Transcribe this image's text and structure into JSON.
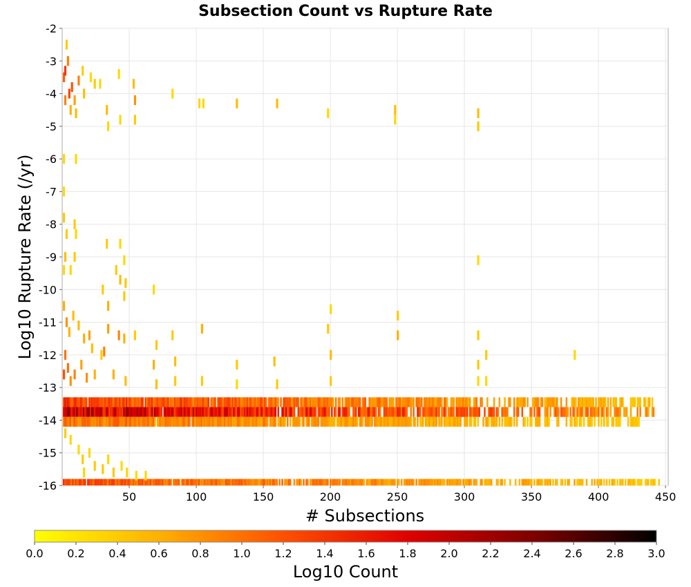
{
  "chart_data": {
    "type": "heatmap",
    "title": "Subsection Count vs Rupture Rate",
    "xlabel": "# Subsections",
    "ylabel": "Log10 Rupture Rate (/yr)",
    "xlim": [
      0,
      452
    ],
    "ylim": [
      -16,
      -2
    ],
    "xticks": [
      "50",
      "100",
      "150",
      "200",
      "250",
      "300",
      "350",
      "400",
      "450"
    ],
    "yticks": [
      "-2",
      "-3",
      "-4",
      "-5",
      "-6",
      "-7",
      "-8",
      "-9",
      "-10",
      "-11",
      "-12",
      "-13",
      "-14",
      "-15",
      "-16"
    ],
    "grid": true,
    "colorbar": {
      "label": "Log10 Count",
      "range": [
        0.0,
        3.0
      ],
      "ticks": [
        "0.0",
        "0.2",
        "0.4",
        "0.6",
        "0.8",
        "1.0",
        "1.2",
        "1.4",
        "1.6",
        "1.8",
        "2.0",
        "2.2",
        "2.4",
        "2.6",
        "2.8",
        "3.0"
      ],
      "colors": [
        "#ffff00",
        "#ffb000",
        "#ff5000",
        "#e00000",
        "#800000",
        "#000000"
      ]
    },
    "bands": [
      {
        "y": [
          -13.3,
          -13.6
        ],
        "x_end": 440,
        "peak": 1.6
      },
      {
        "y": [
          -13.6,
          -13.9
        ],
        "x_end": 445,
        "peak": 2.4
      },
      {
        "y": [
          -13.9,
          -14.2
        ],
        "x_end": 430,
        "peak": 1.2
      },
      {
        "y": [
          -15.8,
          -16.0
        ],
        "x_end": 445,
        "peak": 1.4
      }
    ],
    "bins": [
      {
        "x": 1,
        "y": -3.5,
        "v": 1.1
      },
      {
        "x": 2,
        "y": -3.3,
        "v": 1.4
      },
      {
        "x": 2,
        "y": -4.2,
        "v": 0.9
      },
      {
        "x": 3,
        "y": -2.5,
        "v": 0.4
      },
      {
        "x": 4,
        "y": -3.0,
        "v": 0.9
      },
      {
        "x": 5,
        "y": -4.0,
        "v": 1.3
      },
      {
        "x": 6,
        "y": -4.5,
        "v": 0.6
      },
      {
        "x": 7,
        "y": -3.8,
        "v": 1.2
      },
      {
        "x": 9,
        "y": -4.2,
        "v": 0.7
      },
      {
        "x": 10,
        "y": -4.6,
        "v": 0.5
      },
      {
        "x": 12,
        "y": -3.6,
        "v": 0.9
      },
      {
        "x": 15,
        "y": -3.3,
        "v": 0.4
      },
      {
        "x": 16,
        "y": -4.0,
        "v": 0.5
      },
      {
        "x": 21,
        "y": -3.5,
        "v": 0.3
      },
      {
        "x": 24,
        "y": -3.7,
        "v": 0.4
      },
      {
        "x": 28,
        "y": -3.7,
        "v": 0.3
      },
      {
        "x": 33,
        "y": -4.5,
        "v": 0.5
      },
      {
        "x": 34,
        "y": -5.0,
        "v": 0.3
      },
      {
        "x": 42,
        "y": -3.4,
        "v": 0.3
      },
      {
        "x": 43,
        "y": -4.8,
        "v": 0.3
      },
      {
        "x": 53,
        "y": -3.7,
        "v": 0.5
      },
      {
        "x": 54,
        "y": -4.2,
        "v": 0.8
      },
      {
        "x": 54,
        "y": -4.8,
        "v": 0.4
      },
      {
        "x": 82,
        "y": -4.0,
        "v": 0.3
      },
      {
        "x": 102,
        "y": -4.3,
        "v": 0.3
      },
      {
        "x": 105,
        "y": -4.3,
        "v": 0.3
      },
      {
        "x": 130,
        "y": -4.3,
        "v": 0.5
      },
      {
        "x": 160,
        "y": -4.3,
        "v": 0.5
      },
      {
        "x": 198,
        "y": -4.6,
        "v": 0.3
      },
      {
        "x": 248,
        "y": -4.5,
        "v": 0.5
      },
      {
        "x": 248,
        "y": -4.8,
        "v": 0.3
      },
      {
        "x": 310,
        "y": -4.6,
        "v": 0.5
      },
      {
        "x": 310,
        "y": -5.0,
        "v": 0.4
      },
      {
        "x": 1,
        "y": -6.0,
        "v": 0.3
      },
      {
        "x": 10,
        "y": -6.0,
        "v": 0.3
      },
      {
        "x": 1,
        "y": -7.0,
        "v": 0.3
      },
      {
        "x": 1,
        "y": -7.8,
        "v": 0.4
      },
      {
        "x": 3,
        "y": -8.3,
        "v": 0.4
      },
      {
        "x": 9,
        "y": -8.0,
        "v": 0.4
      },
      {
        "x": 10,
        "y": -8.3,
        "v": 0.3
      },
      {
        "x": 2,
        "y": -9.0,
        "v": 0.5
      },
      {
        "x": 1,
        "y": -9.4,
        "v": 0.3
      },
      {
        "x": 9,
        "y": -9.0,
        "v": 0.4
      },
      {
        "x": 6,
        "y": -9.4,
        "v": 0.3
      },
      {
        "x": 33,
        "y": -8.6,
        "v": 0.4
      },
      {
        "x": 43,
        "y": -8.6,
        "v": 0.3
      },
      {
        "x": 40,
        "y": -9.4,
        "v": 0.4
      },
      {
        "x": 46,
        "y": -9.1,
        "v": 0.3
      },
      {
        "x": 43,
        "y": -9.7,
        "v": 0.5
      },
      {
        "x": 47,
        "y": -9.8,
        "v": 0.4
      },
      {
        "x": 310,
        "y": -9.1,
        "v": 0.3
      },
      {
        "x": 30,
        "y": -10.0,
        "v": 0.4
      },
      {
        "x": 34,
        "y": -10.5,
        "v": 0.6
      },
      {
        "x": 46,
        "y": -10.2,
        "v": 0.4
      },
      {
        "x": 68,
        "y": -10.0,
        "v": 0.3
      },
      {
        "x": 200,
        "y": -10.6,
        "v": 0.3
      },
      {
        "x": 250,
        "y": -10.8,
        "v": 0.4
      },
      {
        "x": 1,
        "y": -10.5,
        "v": 0.6
      },
      {
        "x": 3,
        "y": -11.0,
        "v": 0.8
      },
      {
        "x": 5,
        "y": -11.3,
        "v": 0.6
      },
      {
        "x": 8,
        "y": -10.8,
        "v": 0.5
      },
      {
        "x": 12,
        "y": -11.1,
        "v": 0.5
      },
      {
        "x": 16,
        "y": -11.5,
        "v": 0.6
      },
      {
        "x": 20,
        "y": -11.4,
        "v": 0.7
      },
      {
        "x": 22,
        "y": -11.8,
        "v": 0.5
      },
      {
        "x": 29,
        "y": -12.0,
        "v": 0.4
      },
      {
        "x": 31,
        "y": -11.9,
        "v": 0.9
      },
      {
        "x": 34,
        "y": -11.2,
        "v": 0.7
      },
      {
        "x": 42,
        "y": -11.4,
        "v": 0.9
      },
      {
        "x": 46,
        "y": -11.5,
        "v": 0.6
      },
      {
        "x": 54,
        "y": -11.4,
        "v": 0.4
      },
      {
        "x": 70,
        "y": -11.7,
        "v": 0.4
      },
      {
        "x": 82,
        "y": -11.4,
        "v": 0.4
      },
      {
        "x": 104,
        "y": -11.2,
        "v": 0.6
      },
      {
        "x": 198,
        "y": -11.2,
        "v": 0.4
      },
      {
        "x": 250,
        "y": -11.4,
        "v": 0.6
      },
      {
        "x": 310,
        "y": -11.4,
        "v": 0.4
      },
      {
        "x": 2,
        "y": -12.0,
        "v": 1.0
      },
      {
        "x": 1,
        "y": -12.6,
        "v": 1.2
      },
      {
        "x": 4,
        "y": -12.4,
        "v": 1.0
      },
      {
        "x": 6,
        "y": -12.8,
        "v": 0.8
      },
      {
        "x": 9,
        "y": -12.6,
        "v": 0.9
      },
      {
        "x": 14,
        "y": -12.3,
        "v": 0.7
      },
      {
        "x": 18,
        "y": -12.7,
        "v": 0.8
      },
      {
        "x": 24,
        "y": -12.6,
        "v": 0.6
      },
      {
        "x": 38,
        "y": -12.6,
        "v": 0.6
      },
      {
        "x": 47,
        "y": -12.8,
        "v": 0.5
      },
      {
        "x": 68,
        "y": -12.3,
        "v": 0.6
      },
      {
        "x": 70,
        "y": -12.9,
        "v": 0.5
      },
      {
        "x": 84,
        "y": -12.2,
        "v": 0.5
      },
      {
        "x": 84,
        "y": -12.8,
        "v": 0.4
      },
      {
        "x": 104,
        "y": -12.8,
        "v": 0.4
      },
      {
        "x": 130,
        "y": -12.3,
        "v": 0.4
      },
      {
        "x": 130,
        "y": -12.9,
        "v": 0.3
      },
      {
        "x": 158,
        "y": -12.2,
        "v": 0.5
      },
      {
        "x": 160,
        "y": -12.9,
        "v": 0.4
      },
      {
        "x": 200,
        "y": -12.0,
        "v": 0.5
      },
      {
        "x": 200,
        "y": -12.8,
        "v": 0.4
      },
      {
        "x": 310,
        "y": -12.3,
        "v": 0.4
      },
      {
        "x": 316,
        "y": -12.0,
        "v": 0.4
      },
      {
        "x": 310,
        "y": -12.8,
        "v": 0.3
      },
      {
        "x": 316,
        "y": -12.8,
        "v": 0.3
      },
      {
        "x": 382,
        "y": -12.0,
        "v": 0.3
      },
      {
        "x": 2,
        "y": -14.4,
        "v": 0.4
      },
      {
        "x": 6,
        "y": -14.6,
        "v": 0.3
      },
      {
        "x": 12,
        "y": -14.9,
        "v": 0.3
      },
      {
        "x": 15,
        "y": -15.2,
        "v": 0.4
      },
      {
        "x": 20,
        "y": -15.0,
        "v": 0.3
      },
      {
        "x": 16,
        "y": -15.6,
        "v": 0.3
      },
      {
        "x": 24,
        "y": -15.4,
        "v": 0.4
      },
      {
        "x": 30,
        "y": -15.5,
        "v": 0.4
      },
      {
        "x": 34,
        "y": -15.2,
        "v": 0.3
      },
      {
        "x": 38,
        "y": -15.6,
        "v": 0.4
      },
      {
        "x": 44,
        "y": -15.4,
        "v": 0.3
      },
      {
        "x": 48,
        "y": -15.6,
        "v": 0.3
      },
      {
        "x": 55,
        "y": -15.7,
        "v": 0.3
      },
      {
        "x": 62,
        "y": -15.7,
        "v": 0.3
      }
    ]
  }
}
